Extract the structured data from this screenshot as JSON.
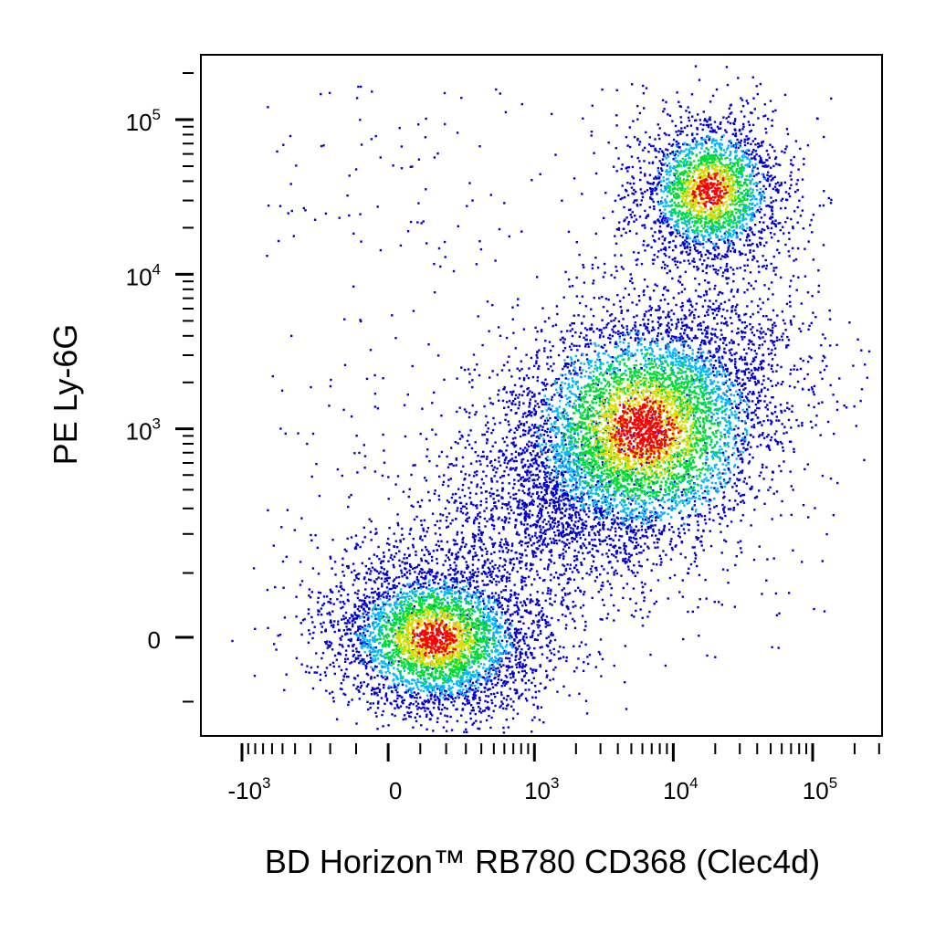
{
  "chart_data": {
    "type": "scatter",
    "style": "density-colored flow cytometry dot plot",
    "xlabel": "BD Horizon™ RB780 CD368 (Clec4d)",
    "ylabel": "PE  Ly-6G",
    "x_scale": "biexponential",
    "y_scale": "biexponential",
    "xlim": [
      -2000,
      200000
    ],
    "ylim": [
      -500,
      250000
    ],
    "grid": false,
    "legend": "none",
    "density_colors": [
      "#0000d4",
      "#00b8ff",
      "#00dd33",
      "#dddd00",
      "#ff0000"
    ],
    "x_ticks": [
      {
        "base": "-10",
        "exp": "3",
        "value": -1000
      },
      {
        "base": "0",
        "exp": "",
        "value": 0
      },
      {
        "base": "10",
        "exp": "3",
        "value": 1000
      },
      {
        "base": "10",
        "exp": "4",
        "value": 10000
      },
      {
        "base": "10",
        "exp": "5",
        "value": 100000
      }
    ],
    "y_ticks": [
      {
        "base": "0",
        "exp": "",
        "value": 0
      },
      {
        "base": "10",
        "exp": "3",
        "value": 1000
      },
      {
        "base": "10",
        "exp": "4",
        "value": 10000
      },
      {
        "base": "10",
        "exp": "5",
        "value": 100000
      }
    ],
    "populations": [
      {
        "x_center": 150,
        "y_center": 0,
        "relative_size": 0.28
      },
      {
        "x_center": 6000,
        "y_center": 1000,
        "relative_size": 0.45
      },
      {
        "x_center": 18000,
        "y_center": 35000,
        "relative_size": 0.17
      },
      {
        "x_center": 1200,
        "y_center": 300,
        "relative_size": 0.1
      }
    ]
  }
}
